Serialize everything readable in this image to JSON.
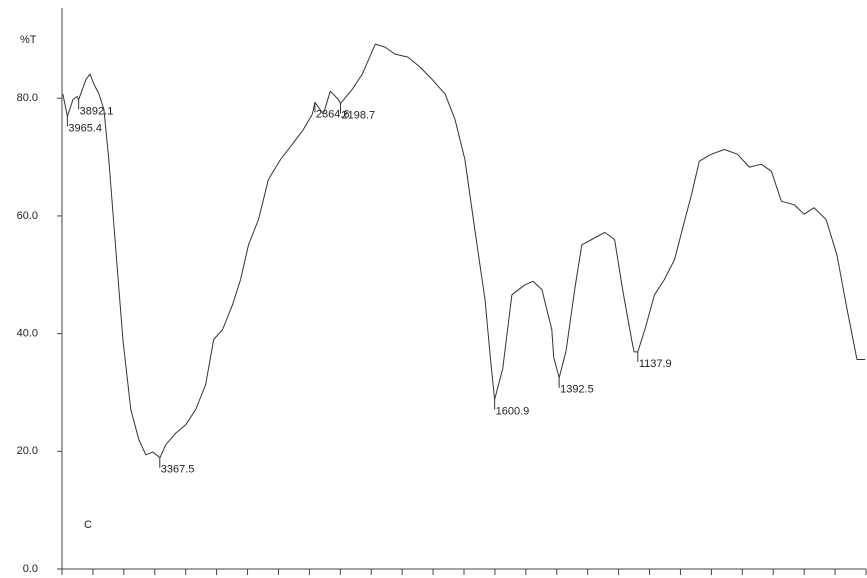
{
  "chart_data": {
    "type": "line",
    "y_label": "%T",
    "panel_label": "C",
    "xlim": [
      4000,
      400
    ],
    "x_scale_break": 2000,
    "xticks": [
      4000,
      3800,
      3600,
      3400,
      3200,
      3000,
      2800,
      2600,
      2400,
      2200,
      2000,
      1900,
      1800,
      1700,
      1600,
      1500,
      1400,
      1300,
      1200,
      1100,
      1000,
      900,
      800,
      700,
      600,
      500,
      400
    ],
    "ylim": [
      0,
      95
    ],
    "yticks": [
      {
        "value": 0,
        "label": "0.0"
      },
      {
        "value": 20,
        "label": "20.0"
      },
      {
        "value": 40,
        "label": "40.0"
      },
      {
        "value": 60,
        "label": "60.0"
      },
      {
        "value": 80,
        "label": "80.0"
      }
    ],
    "series": [
      {
        "color": "#333333",
        "x": [
          3994,
          3965,
          3929,
          3903,
          3892,
          3845,
          3819,
          3794,
          3761,
          3729,
          3697,
          3652,
          3606,
          3555,
          3503,
          3458,
          3413,
          3367,
          3329,
          3264,
          3200,
          3135,
          3071,
          3019,
          2961,
          2897,
          2845,
          2794,
          2729,
          2665,
          2587,
          2510,
          2439,
          2381,
          2364,
          2310,
          2265,
          2213,
          2199,
          2123,
          2058,
          1987,
          1955,
          1923,
          1881,
          1842,
          1803,
          1761,
          1729,
          1697,
          1665,
          1632,
          1615,
          1601,
          1575,
          1545,
          1503,
          1477,
          1448,
          1416,
          1410,
          1392,
          1370,
          1342,
          1319,
          1287,
          1245,
          1213,
          1187,
          1158,
          1150,
          1138,
          1115,
          1084,
          1052,
          1019,
          994,
          964,
          939,
          900,
          858,
          816,
          777,
          739,
          706,
          674,
          632,
          600,
          568,
          529,
          494,
          461,
          429,
          403
        ],
        "values": [
          80.7,
          76.9,
          79.8,
          80.3,
          79.8,
          83.2,
          84.1,
          82.4,
          80.7,
          78.1,
          69.6,
          54.3,
          39.0,
          27.1,
          22.0,
          19.4,
          19.9,
          18.9,
          21.1,
          23.1,
          24.5,
          27.1,
          31.3,
          39.0,
          40.7,
          44.9,
          49.2,
          55.1,
          59.4,
          66.2,
          69.6,
          72.2,
          74.7,
          77.3,
          79.3,
          77.3,
          81.2,
          79.8,
          79.1,
          81.5,
          84.1,
          89.2,
          88.7,
          87.5,
          87.0,
          85.3,
          83.2,
          80.7,
          76.4,
          69.6,
          57.7,
          45.8,
          36.0,
          28.8,
          34.0,
          46.6,
          48.3,
          48.9,
          47.5,
          40.7,
          36.0,
          32.5,
          37.0,
          47.5,
          55.1,
          56.0,
          57.2,
          56.0,
          47.5,
          39.0,
          36.9,
          36.9,
          40.7,
          46.6,
          49.2,
          52.6,
          57.7,
          63.7,
          69.3,
          70.5,
          71.3,
          70.5,
          68.3,
          68.8,
          67.6,
          62.5,
          61.9,
          60.3,
          61.4,
          59.4,
          53.4,
          44.1,
          35.6,
          35.6
        ]
      }
    ],
    "peaks": [
      {
        "x": 3965.4,
        "y": 76.9
      },
      {
        "x": 3892.1,
        "y": 79.8
      },
      {
        "x": 3367.5,
        "y": 18.9
      },
      {
        "x": 2364.6,
        "y": 79.3
      },
      {
        "x": 2198.7,
        "y": 79.1
      },
      {
        "x": 1600.9,
        "y": 28.8
      },
      {
        "x": 1392.5,
        "y": 32.5
      },
      {
        "x": 1137.9,
        "y": 36.9
      }
    ]
  }
}
